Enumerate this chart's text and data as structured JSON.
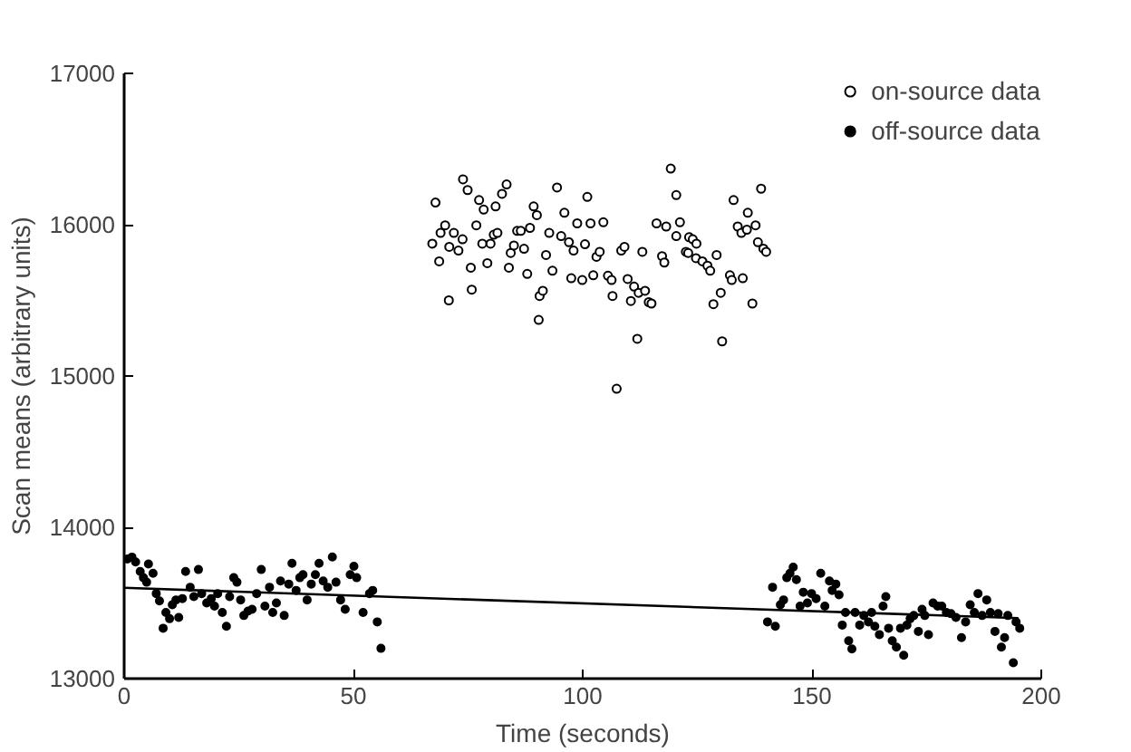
{
  "chart_data": {
    "type": "scatter",
    "xlabel": "Time (seconds)",
    "ylabel": "Scan means (arbitrary units)",
    "xlim": [
      0,
      200
    ],
    "xticks": [
      0,
      50,
      100,
      150,
      200
    ],
    "ylim": [
      13000,
      17000
    ],
    "yticks": [
      13000,
      14000,
      15000,
      16000,
      17000
    ],
    "grid": false,
    "legend": "top right",
    "series": [
      {
        "name": "on-source data",
        "color": "#000000",
        "marker": "circle",
        "x": [
          73.9,
          74.9,
          67.9,
          77.4,
          78.4,
          81,
          82.4,
          83.4,
          67.2,
          69,
          70,
          70.9,
          71.9,
          72.9,
          73.8,
          68.7,
          75.6,
          76.8,
          78.1,
          79.2,
          79.9,
          80.6,
          81.4,
          83.9,
          84.3,
          85,
          85.7,
          86.5,
          87.2,
          87.9,
          88.5,
          89.3,
          90,
          70.8,
          75.8,
          90.6,
          91.3,
          90.4,
          92,
          92.7,
          93.4,
          94.4,
          95.3,
          96,
          97,
          97.5,
          98,
          98.8,
          99.9,
          100.5,
          101,
          101.7,
          102.3,
          103,
          103.7,
          104.5,
          105.5,
          106.3,
          106.5,
          108.4,
          109.1,
          109.8,
          110.5,
          111.2,
          111.9,
          112.2,
          113,
          113.6,
          114.4,
          115,
          107.4,
          116.1,
          117.3,
          117.8,
          118.2,
          119.2,
          120.4,
          120.4,
          121.2,
          122.5,
          123.2,
          124,
          124.8,
          123,
          124.7,
          126.1,
          127.2,
          127.8,
          129.2,
          130.1,
          128.5,
          130.4,
          132.1,
          132.5,
          134.9,
          132.9,
          136,
          133.8,
          134.6,
          135.8,
          137.7,
          138.9,
          138.2,
          139.4,
          140,
          137
        ],
        "values": [
          16300,
          16229,
          16146,
          16163,
          16100,
          16121,
          16204,
          16266,
          15875,
          15946,
          15996,
          15854,
          15946,
          15829,
          15904,
          15758,
          15716,
          15996,
          15875,
          15746,
          15875,
          15934,
          15946,
          15716,
          15813,
          15863,
          15959,
          15959,
          15841,
          15675,
          15979,
          16121,
          16063,
          15500,
          15571,
          15529,
          15563,
          15371,
          15800,
          15946,
          15696,
          16246,
          15925,
          16079,
          15884,
          15646,
          15829,
          16009,
          15634,
          15871,
          16184,
          16009,
          15666,
          15788,
          15821,
          16016,
          15663,
          15634,
          15529,
          15829,
          15854,
          15641,
          15496,
          15591,
          15246,
          15550,
          15821,
          15563,
          15488,
          15479,
          14916,
          16009,
          15792,
          15750,
          15988,
          16371,
          16196,
          15925,
          16016,
          15821,
          15917,
          15904,
          15875,
          15813,
          15779,
          15758,
          15729,
          15696,
          15800,
          15550,
          15475,
          15229,
          15666,
          15634,
          15646,
          16163,
          16079,
          15988,
          15946,
          15967,
          15996,
          16238,
          15884,
          15842,
          15821,
          15479
        ]
      },
      {
        "name": "off-source data",
        "color": "#000000",
        "marker": "dot",
        "x": [
          0.7,
          1.7,
          2.5,
          3.5,
          4.2,
          5.3,
          6.3,
          4.9,
          7,
          7.7,
          8.5,
          9.1,
          9.9,
          10.5,
          11.3,
          11.9,
          12.7,
          13.4,
          14.4,
          15.2,
          16.2,
          16.9,
          18,
          19,
          19.7,
          20.4,
          21.4,
          22.3,
          23,
          23.9,
          24.6,
          25.4,
          26.1,
          27,
          27.9,
          28.9,
          29.9,
          30.7,
          31.7,
          32.4,
          33.2,
          34.1,
          34.9,
          35.9,
          36.6,
          37.5,
          38.3,
          39,
          39.9,
          40.8,
          41.7,
          42.5,
          43.4,
          44.4,
          45.4,
          46.2,
          47.2,
          48.2,
          49.3,
          50.1,
          50.7,
          52.1,
          53.5,
          54.2,
          55.2,
          56,
          140.3,
          142,
          141.4,
          143.1,
          143.8,
          144.5,
          145.2,
          145.9,
          146.6,
          147.4,
          148.1,
          149,
          149.9,
          150.9,
          151.9,
          152.8,
          153.8,
          154.4,
          155.2,
          155.9,
          156.6,
          157.3,
          158,
          158.7,
          159.4,
          160.4,
          161.3,
          162.3,
          163,
          163.7,
          164.7,
          165.5,
          166.1,
          166.7,
          167.5,
          168.4,
          169.3,
          170,
          170.7,
          171.4,
          172.2,
          173.2,
          174,
          174.6,
          175.4,
          176.4,
          177.4,
          178.3,
          179.3,
          180.3,
          181.4,
          182.6,
          183.5,
          184.5,
          185.4,
          186.2,
          187.1,
          188.1,
          188.9,
          189.9,
          190.6,
          191.3,
          192,
          192.7,
          193.9,
          194.5,
          195.3
        ],
        "values": [
          13791,
          13803,
          13771,
          13708,
          13667,
          13758,
          13696,
          13637,
          13562,
          13513,
          13333,
          13437,
          13396,
          13488,
          13520,
          13404,
          13529,
          13708,
          13604,
          13542,
          13721,
          13562,
          13500,
          13529,
          13479,
          13562,
          13437,
          13346,
          13542,
          13667,
          13637,
          13520,
          13417,
          13446,
          13458,
          13562,
          13721,
          13479,
          13604,
          13437,
          13500,
          13645,
          13417,
          13625,
          13762,
          13583,
          13667,
          13687,
          13520,
          13625,
          13687,
          13762,
          13645,
          13604,
          13804,
          13637,
          13520,
          13458,
          13687,
          13742,
          13667,
          13437,
          13562,
          13583,
          13375,
          13200,
          13375,
          13346,
          13604,
          13488,
          13520,
          13667,
          13696,
          13737,
          13654,
          13479,
          13571,
          13500,
          13562,
          13529,
          13696,
          13479,
          13645,
          13583,
          13625,
          13554,
          13354,
          13437,
          13250,
          13196,
          13437,
          13354,
          13417,
          13375,
          13437,
          13346,
          13291,
          13479,
          13542,
          13333,
          13250,
          13208,
          13333,
          13154,
          13354,
          13396,
          13417,
          13312,
          13458,
          13417,
          13291,
          13500,
          13479,
          13479,
          13437,
          13429,
          13404,
          13271,
          13375,
          13488,
          13437,
          13562,
          13417,
          13520,
          13437,
          13312,
          13429,
          13208,
          13271,
          13417,
          13105,
          13375,
          13333
        ]
      },
      {
        "type": "line",
        "color": "#000000",
        "x": [
          0,
          195
        ],
        "values": [
          13600,
          13400
        ]
      }
    ]
  }
}
